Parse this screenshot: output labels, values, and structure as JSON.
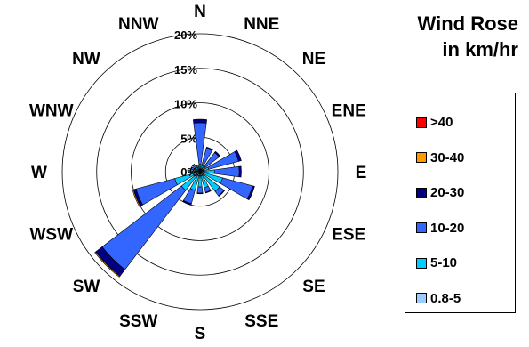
{
  "title": {
    "line1": "Wind Rose",
    "line2": "in km/hr"
  },
  "chart_data": {
    "type": "wind-rose",
    "title": "Wind Rose in km/hr",
    "directions": [
      "N",
      "NNE",
      "NE",
      "ENE",
      "E",
      "ESE",
      "SE",
      "SSE",
      "S",
      "SSW",
      "SW",
      "WSW",
      "W",
      "WNW",
      "NW",
      "NNW"
    ],
    "direction_angles_deg": [
      0,
      22.5,
      45,
      67.5,
      90,
      112.5,
      135,
      157.5,
      180,
      202.5,
      225,
      247.5,
      270,
      292.5,
      315,
      337.5
    ],
    "rings": [
      5,
      10,
      15,
      20
    ],
    "ring_labels": [
      "5%",
      "10%",
      "15%",
      "20%"
    ],
    "center_label": "0%",
    "max": 20,
    "series": [
      {
        "name": "0.8-5",
        "color": "#99ccff",
        "values": [
          0.5,
          0.4,
          0.4,
          0.5,
          0.6,
          0.6,
          0.6,
          0.6,
          0.6,
          0.6,
          0.6,
          0.6,
          0.5,
          0.4,
          0.4,
          0.4
        ]
      },
      {
        "name": "5-10",
        "color": "#00ccff",
        "values": [
          0.6,
          0.5,
          0.6,
          0.8,
          1.5,
          2.8,
          3.0,
          1.8,
          1.6,
          2.2,
          2.8,
          3.2,
          0.8,
          0.4,
          0.4,
          0.3
        ]
      },
      {
        "name": "10-20",
        "color": "#3366ff",
        "values": [
          6.0,
          2.6,
          2.5,
          4.5,
          3.6,
          4.5,
          0.8,
          0.7,
          0.9,
          2.0,
          14.5,
          5.8,
          0.4,
          0.5,
          0.5,
          0.3
        ]
      },
      {
        "name": "20-30",
        "color": "#000080",
        "values": [
          0.5,
          0.2,
          0.2,
          0.4,
          0.3,
          0.3,
          0.1,
          0.1,
          0.1,
          0.2,
          1.2,
          0.4,
          0.0,
          0.1,
          0.1,
          0.0
        ]
      },
      {
        "name": "30-40",
        "color": "#ff9900",
        "values": [
          0,
          0,
          0,
          0,
          0,
          0,
          0,
          0,
          0,
          0,
          0.15,
          0.15,
          0,
          0,
          0,
          0
        ]
      },
      {
        "name": ">40",
        "color": "#ff0000",
        "values": [
          0,
          0,
          0,
          0,
          0,
          0,
          0,
          0,
          0,
          0,
          0,
          0,
          0,
          0,
          0,
          0
        ]
      }
    ],
    "legend_order": [
      ">40",
      "30-40",
      "20-30",
      "10-20",
      "5-10",
      "0.8-5"
    ],
    "legend_position": "right",
    "grid": true
  }
}
